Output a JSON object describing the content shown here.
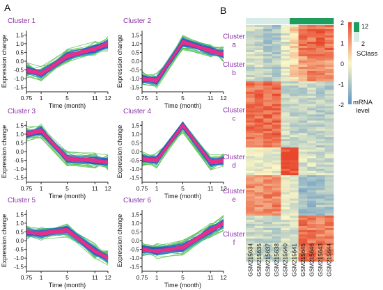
{
  "figure": {
    "panel_a_label": "A",
    "panel_b_label": "B"
  },
  "colors": {
    "cluster_title": "#8b2fa8",
    "line_green": "#5fc255",
    "line_teal": "#2aa6b8",
    "line_blue": "#2f57c9",
    "line_core": "#e8308a",
    "heat_high": "#e8472c",
    "heat_mid": "#fbf7c6",
    "heat_low": "#5f95c6",
    "sclass_high": "#1f9d5d",
    "sclass_low": "#d7ece6"
  },
  "chart_data": [
    {
      "type": "line",
      "title": "Cluster 1",
      "xlabel": "Time (month)",
      "ylabel": "Expression change",
      "categories": [
        "0.75",
        "1",
        "5",
        "11",
        "12"
      ],
      "ylim": [
        -1.75,
        1.75
      ],
      "yticks": [
        "1.5",
        "1.0",
        "0.5",
        "0.0",
        "-0.5",
        "-1.0",
        "-1.5"
      ],
      "series": [
        {
          "values": [
            -0.5,
            -0.7,
            0.3,
            0.7,
            1.0
          ]
        }
      ]
    },
    {
      "type": "line",
      "title": "Cluster 2",
      "xlabel": "Time (month)",
      "ylabel": "Expression change",
      "categories": [
        "0.75",
        "1",
        "5",
        "11",
        "12"
      ],
      "ylim": [
        -1.75,
        1.75
      ],
      "yticks": [
        "1.5",
        "1.0",
        "0.5",
        "0.0",
        "-0.5",
        "-1.0",
        "-1.5"
      ],
      "series": [
        {
          "values": [
            -1.0,
            -1.1,
            1.1,
            0.6,
            0.4
          ]
        }
      ]
    },
    {
      "type": "line",
      "title": "Cluster 3",
      "xlabel": "Time (month)",
      "ylabel": "Expression change",
      "categories": [
        "0.75",
        "1",
        "5",
        "11",
        "12"
      ],
      "ylim": [
        -1.75,
        1.75
      ],
      "yticks": [
        "1.5",
        "1.0",
        "0.5",
        "0.0",
        "-0.5",
        "-1.0",
        "-1.5"
      ],
      "series": [
        {
          "values": [
            1.0,
            1.2,
            -0.4,
            -0.5,
            -0.6
          ]
        }
      ]
    },
    {
      "type": "line",
      "title": "Cluster 4",
      "xlabel": "Time (month)",
      "ylabel": "Expression change",
      "categories": [
        "0.75",
        "1",
        "5",
        "11",
        "12"
      ],
      "ylim": [
        -1.75,
        1.75
      ],
      "yticks": [
        "1.5",
        "1.0",
        "0.5",
        "0.0",
        "-0.5",
        "-1.0",
        "-1.5"
      ],
      "series": [
        {
          "values": [
            -0.4,
            -0.5,
            1.5,
            -0.6,
            -0.5
          ]
        }
      ]
    },
    {
      "type": "line",
      "title": "Cluster 5",
      "xlabel": "Time (month)",
      "ylabel": "Expression change",
      "categories": [
        "0.75",
        "1",
        "5",
        "11",
        "12"
      ],
      "ylim": [
        -1.75,
        1.75
      ],
      "yticks": [
        "1.5",
        "1.0",
        "0.5",
        "0.0",
        "-0.5",
        "-1.0",
        "-1.5"
      ],
      "series": [
        {
          "values": [
            0.5,
            0.4,
            0.6,
            -0.6,
            -1.0
          ]
        }
      ]
    },
    {
      "type": "line",
      "title": "Cluster 6",
      "xlabel": "Time (month)",
      "ylabel": "Expression change",
      "categories": [
        "0.75",
        "1",
        "5",
        "11",
        "12"
      ],
      "ylim": [
        -1.75,
        1.75
      ],
      "yticks": [
        "1.5",
        "1.0",
        "0.5",
        "0.0",
        "-0.5",
        "-1.0",
        "-1.5"
      ],
      "series": [
        {
          "values": [
            -0.5,
            -0.6,
            -0.4,
            0.6,
            1.0
          ]
        }
      ]
    },
    {
      "type": "heatmap",
      "columns": [
        "GSM215634",
        "GSM215635",
        "GSM215637",
        "GSM215638",
        "GSM215640",
        "GSM215641",
        "GSM215645",
        "GSM215646",
        "GSM215643",
        "GSM215644"
      ],
      "sclass": [
        2,
        2,
        2,
        2,
        2,
        12,
        12,
        12,
        12,
        12
      ],
      "clusters": [
        {
          "label": "Cluster a",
          "values": [
            -0.6,
            -0.6,
            -1.0,
            -1.0,
            -0.4,
            0.4,
            1.4,
            1.5,
            1.6,
            1.5
          ]
        },
        {
          "label": "Cluster b",
          "values": [
            -0.6,
            -0.6,
            -0.8,
            -0.8,
            -0.3,
            0.3,
            1.0,
            1.2,
            1.2,
            1.1
          ]
        },
        {
          "label": "Cluster c",
          "values": [
            1.5,
            1.5,
            1.6,
            1.6,
            -0.6,
            -0.7,
            -0.7,
            -0.7,
            -0.8,
            -0.8
          ]
        },
        {
          "label": "Cluster d",
          "values": [
            -0.1,
            -0.1,
            -0.2,
            -0.2,
            2.0,
            1.9,
            -0.5,
            -0.5,
            -0.6,
            -0.6
          ]
        },
        {
          "label": "Cluster e",
          "values": [
            1.2,
            1.2,
            1.3,
            1.3,
            -0.2,
            -0.3,
            -1.2,
            -1.2,
            -1.0,
            -1.0
          ]
        },
        {
          "label": "Cluster f",
          "values": [
            -0.6,
            -0.6,
            -0.7,
            -0.7,
            -0.4,
            -0.5,
            1.4,
            1.4,
            1.3,
            1.3
          ]
        }
      ],
      "colorbar": {
        "ticks": [
          "2",
          "1",
          "0",
          "-1",
          "-2"
        ],
        "label_line1": "mRNA",
        "label_line2": "level",
        "range": [
          -2,
          2
        ]
      },
      "sclass_legend": {
        "title": "SClass",
        "ticks": [
          "12",
          "2"
        ]
      }
    }
  ]
}
